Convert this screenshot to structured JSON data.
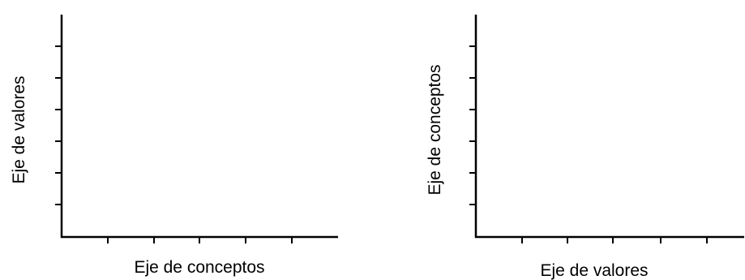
{
  "chart_data": [
    {
      "type": "bar",
      "orientation": "vertical",
      "title": "",
      "xlabel": "Eje de conceptos",
      "ylabel": "Eje de valores",
      "categories": [],
      "values": [],
      "x_tick_count": 5,
      "y_tick_count": 6,
      "grid": false
    },
    {
      "type": "bar",
      "orientation": "horizontal",
      "title": "",
      "xlabel": "Eje de valores",
      "ylabel": "Eje de conceptos",
      "categories": [],
      "values": [],
      "x_tick_count": 5,
      "y_tick_count": 6,
      "grid": false
    }
  ]
}
